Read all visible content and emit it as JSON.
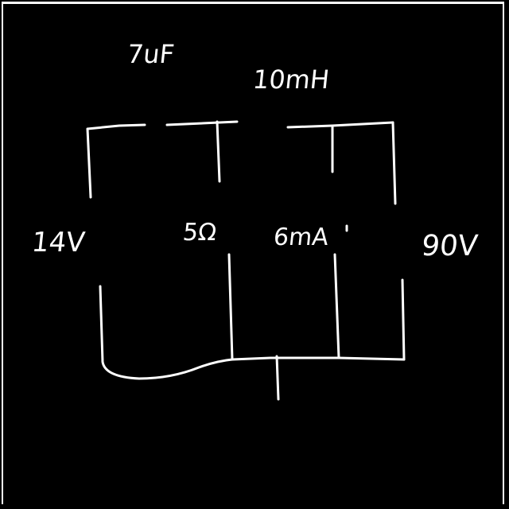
{
  "diagram": {
    "labels": {
      "capacitor": "7uF",
      "inductor": "10mH",
      "source_left": "14V",
      "resistor": "5Ω",
      "current_source": "6mA",
      "source_right": "90V"
    },
    "colors": {
      "background": "#000000",
      "ink": "#ffffff"
    }
  }
}
